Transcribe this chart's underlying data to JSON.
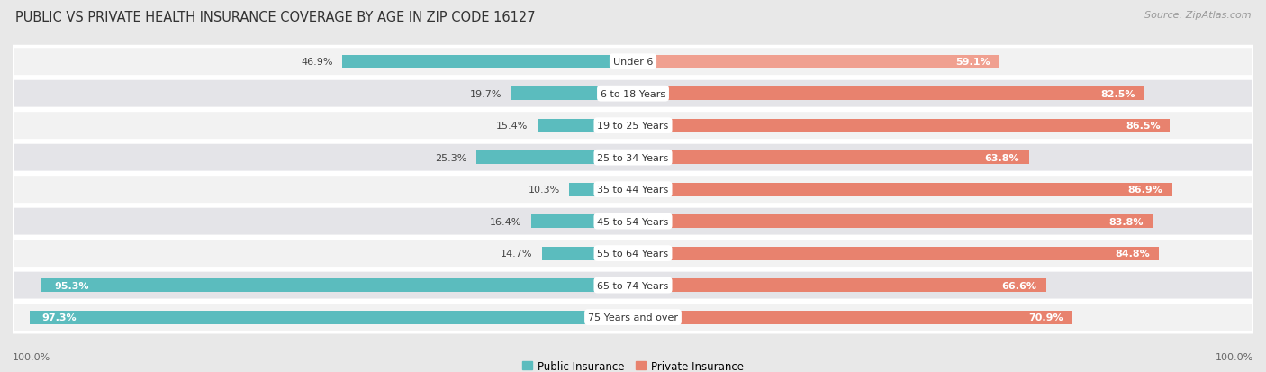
{
  "title": "PUBLIC VS PRIVATE HEALTH INSURANCE COVERAGE BY AGE IN ZIP CODE 16127",
  "source": "Source: ZipAtlas.com",
  "categories": [
    "Under 6",
    "6 to 18 Years",
    "19 to 25 Years",
    "25 to 34 Years",
    "35 to 44 Years",
    "45 to 54 Years",
    "55 to 64 Years",
    "65 to 74 Years",
    "75 Years and over"
  ],
  "public_values": [
    46.9,
    19.7,
    15.4,
    25.3,
    10.3,
    16.4,
    14.7,
    95.3,
    97.3
  ],
  "private_values": [
    59.1,
    82.5,
    86.5,
    63.8,
    86.9,
    83.8,
    84.8,
    66.6,
    70.9
  ],
  "public_color": "#5bbcbe",
  "private_color": "#e8826e",
  "public_color_light": "#a8d8d8",
  "private_color_light": "#f2b8aa",
  "background_color": "#e8e8e8",
  "row_bg_color": "#f0f0f0",
  "row_alt_bg_color": "#e0e0e0",
  "bar_height": 0.42,
  "max_value": 100.0,
  "x_axis_left_label": "100.0%",
  "x_axis_right_label": "100.0%",
  "legend_public": "Public Insurance",
  "legend_private": "Private Insurance",
  "title_fontsize": 10.5,
  "label_fontsize": 8,
  "category_fontsize": 8,
  "axis_fontsize": 8,
  "source_fontsize": 8
}
